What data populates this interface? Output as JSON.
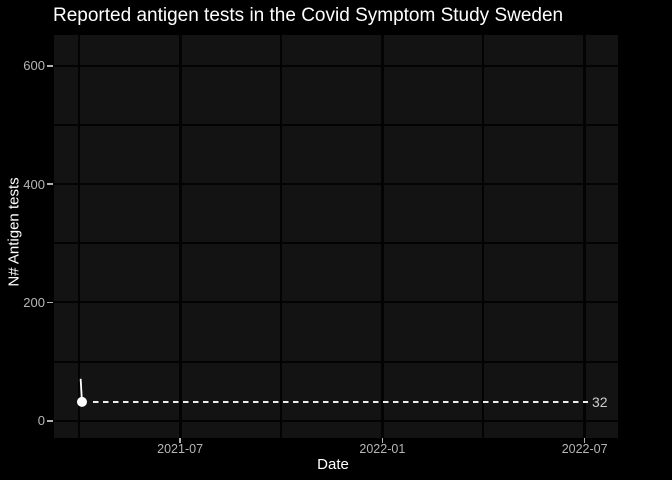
{
  "window": {
    "background": "#000000"
  },
  "chart_data": {
    "type": "line",
    "title": "Reported antigen tests in the Covid Symptom Study Sweden",
    "xlabel": "Date",
    "ylabel": "N# Antigen tests",
    "x_encoding": "m = months since 2021-01",
    "x_domain": [
      2.26,
      18.99
    ],
    "y_domain": [
      -29,
      652
    ],
    "x_major_ticks": [
      {
        "label": "2021-07",
        "m": 6
      },
      {
        "label": "2022-01",
        "m": 12
      },
      {
        "label": "2022-07",
        "m": 18
      }
    ],
    "x_minor_ticks": [
      3,
      9,
      15
    ],
    "y_major_ticks": [
      {
        "label": "0",
        "v": 0
      },
      {
        "label": "200",
        "v": 200
      },
      {
        "label": "400",
        "v": 400
      },
      {
        "label": "600",
        "v": 600
      }
    ],
    "y_minor_ticks": [
      100,
      300,
      500
    ],
    "series": [
      {
        "name": "reported_antigen_tests",
        "color": "#ffffff",
        "points": [
          {
            "m": 3.05,
            "v": 71
          },
          {
            "m": 3.09,
            "v": 32
          }
        ],
        "end_marker": true,
        "marker_radius": 5
      }
    ],
    "last_value_annotation": {
      "value": 32,
      "label": "32",
      "line_style": "dashed",
      "line_color": "#eeeeee"
    },
    "grid": true,
    "legend": "none",
    "colors": {
      "outer_bg": "#000000",
      "panel_bg": "#131313",
      "grid": "#030303",
      "tick_label": "#b5b5b5",
      "tick_mark": "#b0b0b0",
      "axis_title": "#ffffff",
      "title": "#ffffff",
      "annotation_label": "#cccccc"
    }
  }
}
